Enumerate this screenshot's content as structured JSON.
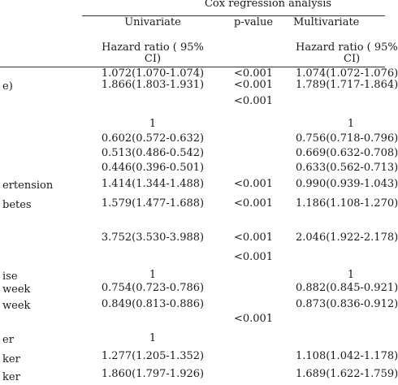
{
  "header": {
    "group_title": "Cox regression analysis",
    "univariate": "Univariate",
    "p_value": "p-value",
    "multivariate": "Multivariate",
    "hr_line1": "Hazard ratio ( 95%",
    "hr_line2": "CI)",
    "hr_line1_multi": "Hazard ratio ( 95%",
    "hr_line2_multi": "CI)"
  },
  "rows": [
    {
      "label": "",
      "uni": "1.072(1.070-1.074)",
      "p": "<0.001",
      "multi": "1.074(1.072-1.076)"
    },
    {
      "label": "e)",
      "uni": "1.866(1.803-1.931)",
      "p": "<0.001",
      "multi": "1.789(1.717-1.864)"
    },
    {
      "label": "",
      "uni": "",
      "p": "<0.001",
      "multi": ""
    },
    {
      "label": "",
      "uni": "1",
      "p": "",
      "multi": "1"
    },
    {
      "label": "",
      "uni": "0.602(0.572-0.632)",
      "p": "",
      "multi": "0.756(0.718-0.796)"
    },
    {
      "label": "",
      "uni": "0.513(0.486-0.542)",
      "p": "",
      "multi": "0.669(0.632-0.708)"
    },
    {
      "label": "",
      "uni": "0.446(0.396-0.501)",
      "p": "",
      "multi": "0.633(0.562-0.713)"
    },
    {
      "label": "ertension",
      "uni": "1.414(1.344-1.488)",
      "p": "<0.001",
      "multi": "0.990(0.939-1.043)"
    },
    {
      "label": "betes",
      "uni": "1.579(1.477-1.688)",
      "p": "<0.001",
      "multi": "1.186(1.108-1.270)"
    },
    {
      "label": "",
      "uni": "3.752(3.530-3.988)",
      "p": "<0.001",
      "multi": "2.046(1.922-2.178)"
    },
    {
      "label": "",
      "uni": "",
      "p": "<0.001",
      "multi": ""
    },
    {
      "label": "ise",
      "uni": "1",
      "p": "",
      "multi": "1"
    },
    {
      "label": "week",
      "uni": "0.754(0.723-0.786)",
      "p": "",
      "multi": "0.882(0.845-0.921)"
    },
    {
      "label": "week",
      "uni": "0.849(0.813-0.886)",
      "p": "",
      "multi": "0.873(0.836-0.912)"
    },
    {
      "label": "",
      "uni": "",
      "p": "<0.001",
      "multi": ""
    },
    {
      "label": "er",
      "uni": "1",
      "p": "",
      "multi": ""
    },
    {
      "label": "ker",
      "uni": "1.277(1.205-1.352)",
      "p": "",
      "multi": "1.108(1.042-1.178)"
    },
    {
      "label": "ker",
      "uni": "1.860(1.797-1.926)",
      "p": "",
      "multi": "1.689(1.622-1.759)"
    }
  ]
}
